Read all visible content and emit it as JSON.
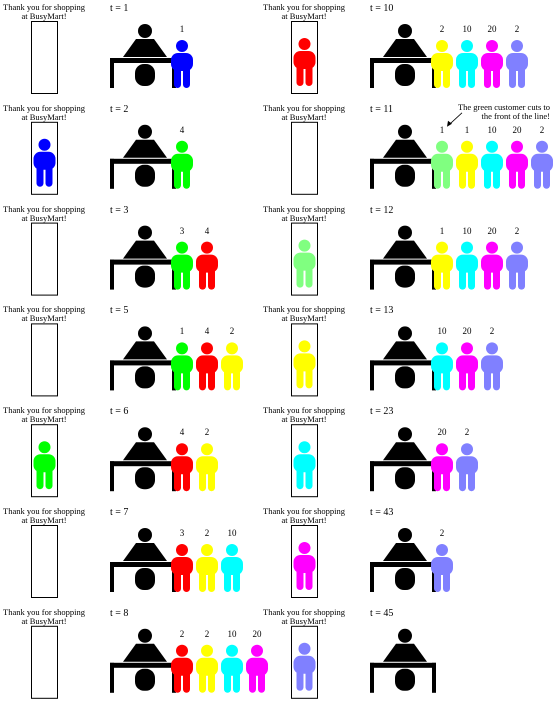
{
  "message": {
    "line1": "Thank you for shopping",
    "line2": "at BusyMart!"
  },
  "note": {
    "line1": "The green customer cuts to",
    "line2": "the front of the line!"
  },
  "colors": {
    "blue": "#0000ff",
    "red": "#ff0000",
    "green": "#00ff00",
    "yellow": "#ffff00",
    "cyan": "#00ffff",
    "magenta": "#ff00ff",
    "periwinkle": "#8080ff",
    "lightgreen": "#80ff80",
    "clerk": "#000000"
  },
  "columns": [
    {
      "panels": [
        {
          "time": "t = 1",
          "exiting": null,
          "queue": [
            {
              "color": "blue",
              "label": "1"
            }
          ]
        },
        {
          "time": "t = 2",
          "exiting": "blue",
          "queue": [
            {
              "color": "green",
              "label": "4"
            }
          ]
        },
        {
          "time": "t = 3",
          "exiting": null,
          "queue": [
            {
              "color": "green",
              "label": "3"
            },
            {
              "color": "red",
              "label": "4"
            }
          ]
        },
        {
          "time": "t = 5",
          "exiting": null,
          "queue": [
            {
              "color": "green",
              "label": "1"
            },
            {
              "color": "red",
              "label": "4"
            },
            {
              "color": "yellow",
              "label": "2"
            }
          ]
        },
        {
          "time": "t = 6",
          "exiting": "green",
          "queue": [
            {
              "color": "red",
              "label": "4"
            },
            {
              "color": "yellow",
              "label": "2"
            }
          ]
        },
        {
          "time": "t = 7",
          "exiting": null,
          "queue": [
            {
              "color": "red",
              "label": "3"
            },
            {
              "color": "yellow",
              "label": "2"
            },
            {
              "color": "cyan",
              "label": "10"
            }
          ]
        },
        {
          "time": "t = 8",
          "exiting": null,
          "queue": [
            {
              "color": "red",
              "label": "2"
            },
            {
              "color": "yellow",
              "label": "2"
            },
            {
              "color": "cyan",
              "label": "10"
            },
            {
              "color": "magenta",
              "label": "20"
            }
          ]
        }
      ]
    },
    {
      "panels": [
        {
          "time": "t = 10",
          "exiting": "red",
          "queue": [
            {
              "color": "yellow",
              "label": "2"
            },
            {
              "color": "cyan",
              "label": "10"
            },
            {
              "color": "magenta",
              "label": "20"
            },
            {
              "color": "periwinkle",
              "label": "2"
            }
          ]
        },
        {
          "time": "t = 11",
          "exiting": null,
          "queue": [
            {
              "color": "lightgreen",
              "label": "1"
            },
            {
              "color": "yellow",
              "label": "1"
            },
            {
              "color": "cyan",
              "label": "10"
            },
            {
              "color": "magenta",
              "label": "20"
            },
            {
              "color": "periwinkle",
              "label": "2"
            }
          ]
        },
        {
          "time": "t = 12",
          "exiting": "lightgreen",
          "queue": [
            {
              "color": "yellow",
              "label": "1"
            },
            {
              "color": "cyan",
              "label": "10"
            },
            {
              "color": "magenta",
              "label": "20"
            },
            {
              "color": "periwinkle",
              "label": "2"
            }
          ]
        },
        {
          "time": "t = 13",
          "exiting": "yellow",
          "queue": [
            {
              "color": "cyan",
              "label": "10"
            },
            {
              "color": "magenta",
              "label": "20"
            },
            {
              "color": "periwinkle",
              "label": "2"
            }
          ]
        },
        {
          "time": "t = 23",
          "exiting": "cyan",
          "queue": [
            {
              "color": "magenta",
              "label": "20"
            },
            {
              "color": "periwinkle",
              "label": "2"
            }
          ]
        },
        {
          "time": "t = 43",
          "exiting": "magenta",
          "queue": [
            {
              "color": "periwinkle",
              "label": "2"
            }
          ]
        },
        {
          "time": "t = 45",
          "exiting": "periwinkle",
          "queue": []
        }
      ]
    }
  ]
}
